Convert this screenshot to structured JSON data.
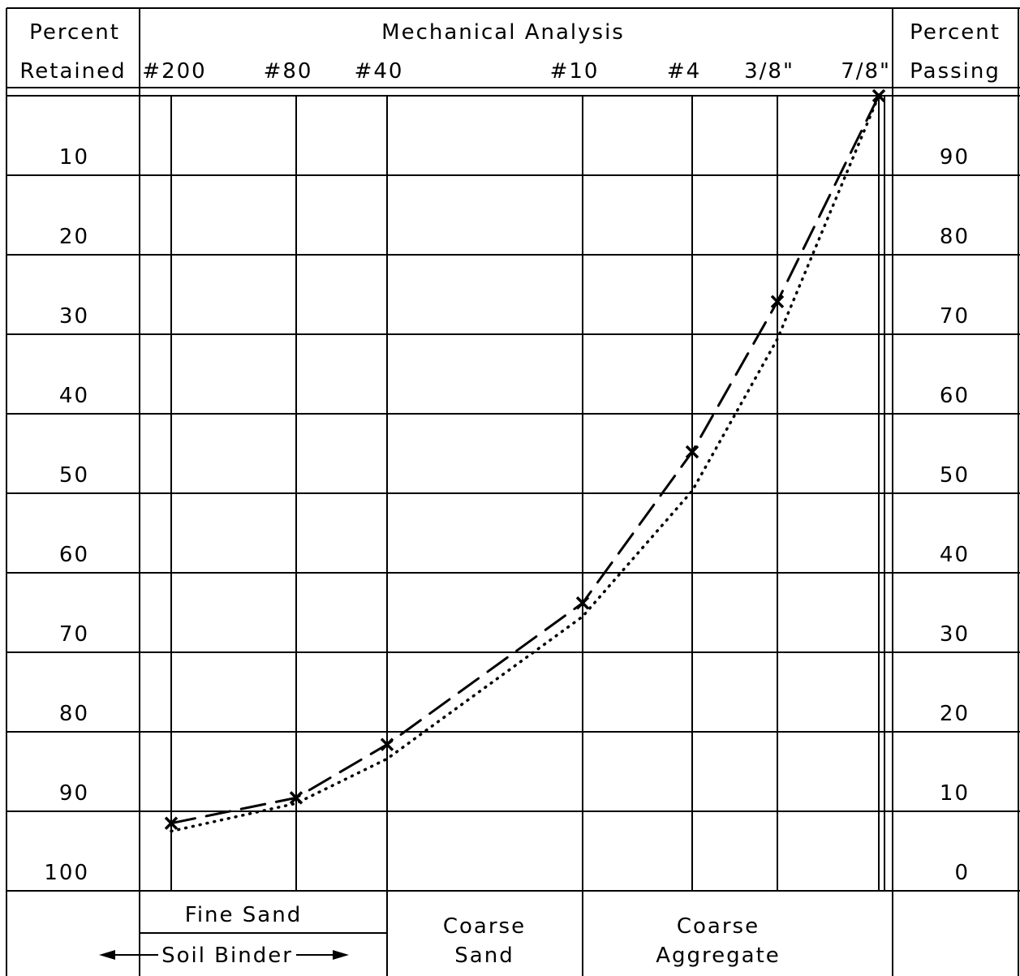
{
  "chart_data": {
    "type": "line",
    "title": "Mechanical Analysis",
    "left_header": [
      "Percent",
      "Retained"
    ],
    "right_header": [
      "Percent",
      "Passing"
    ],
    "categories": [
      "#200",
      "#80",
      "#40",
      "#10",
      "#4",
      "3/8\"",
      "7/8\""
    ],
    "series": [
      {
        "color": "#000000",
        "style": "dashed",
        "marker": "x",
        "values": [
          91.5,
          88.3,
          81.6,
          63.8,
          44.8,
          25.9,
          0
        ]
      },
      {
        "color": "#000000",
        "style": "dotted",
        "marker": "none",
        "values": [
          92.5,
          89,
          83.4,
          65.5,
          49.7,
          30.6,
          0
        ]
      }
    ],
    "ylim": [
      0,
      100
    ],
    "y_inverted": true,
    "yticks": [
      10,
      20,
      30,
      40,
      50,
      60,
      70,
      80,
      90,
      100
    ],
    "y2lim": [
      0,
      100
    ],
    "y2ticks": [
      90,
      80,
      70,
      60,
      50,
      40,
      30,
      20,
      10,
      0
    ],
    "grid": true,
    "annotations": [
      "Fine Sand",
      "Soil Binder",
      "Coarse",
      "Sand",
      "Coarse",
      "Aggregate"
    ]
  }
}
